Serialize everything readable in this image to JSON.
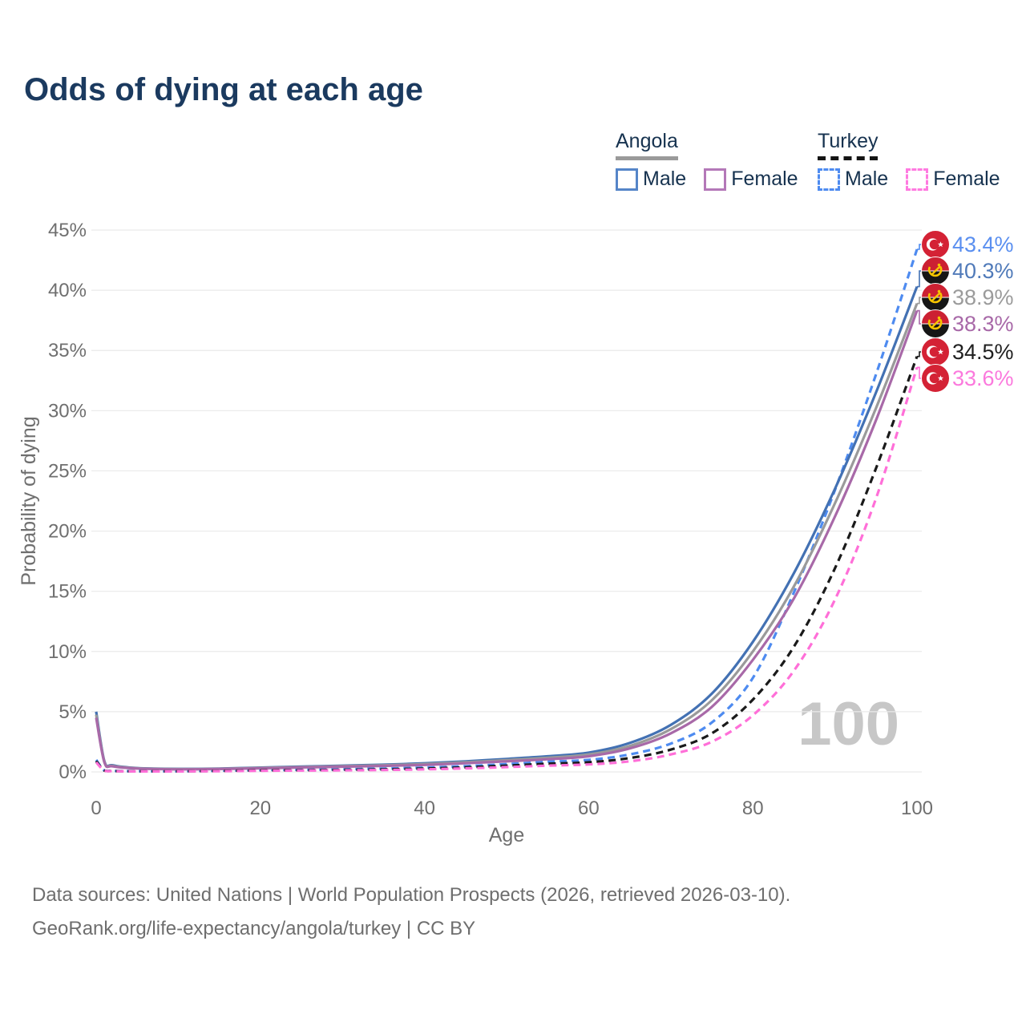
{
  "title": "Odds of dying at each age",
  "legend": {
    "groups": [
      {
        "label": "Angola",
        "underline_style": "solid",
        "underline_color": "#9a9a9a",
        "items": [
          {
            "label": "Male",
            "color": "#4371b3",
            "style": "solid"
          },
          {
            "label": "Female",
            "color": "#a869a8",
            "style": "solid"
          }
        ]
      },
      {
        "label": "Turkey",
        "underline_style": "dashed",
        "underline_color": "#141414",
        "items": [
          {
            "label": "Male",
            "color": "#4e8bf0",
            "style": "dashed"
          },
          {
            "label": "Female",
            "color": "#ff6fd8",
            "style": "dashed"
          }
        ]
      }
    ]
  },
  "watermark": "100",
  "footer": {
    "line1": "Data sources: United Nations | World Population Prospects (2026, retrieved 2026-03-10).",
    "line2": "GeoRank.org/life-expectancy/angola/turkey | CC BY"
  },
  "chart_data": {
    "type": "line",
    "title": "Odds of dying at each age",
    "xlabel": "Age",
    "ylabel": "Probability of dying",
    "xlim": [
      0,
      100
    ],
    "ylim": [
      0,
      45
    ],
    "x_ticks": [
      0,
      20,
      40,
      60,
      80,
      100
    ],
    "y_ticks": [
      0,
      5,
      10,
      15,
      20,
      25,
      30,
      35,
      40,
      45
    ],
    "y_tick_suffix": "%",
    "grid": true,
    "legend_position": "top-right",
    "ages": [
      0,
      1,
      2,
      5,
      10,
      15,
      20,
      25,
      30,
      35,
      40,
      45,
      50,
      55,
      60,
      65,
      70,
      75,
      80,
      85,
      90,
      95,
      100
    ],
    "series": [
      {
        "name": "Turkey Male",
        "country": "Turkey",
        "sex": "Male",
        "color": "#4e8bf0",
        "label_color": "#5a8ff0",
        "dash": true,
        "flag": "turkey-flag",
        "end_label": "43.4%",
        "end_value": 43.4,
        "values": [
          1.0,
          0.12,
          0.08,
          0.06,
          0.06,
          0.1,
          0.15,
          0.18,
          0.22,
          0.28,
          0.36,
          0.48,
          0.65,
          0.85,
          1.0,
          1.45,
          2.35,
          4.1,
          7.8,
          14.9,
          23.4,
          33.0,
          43.4
        ]
      },
      {
        "name": "Angola Male",
        "country": "Angola",
        "sex": "Male",
        "color": "#4371b3",
        "label_color": "#507ab9",
        "dash": false,
        "flag": "angola-flag",
        "end_label": "40.3%",
        "end_value": 40.3,
        "values": [
          5.0,
          0.9,
          0.55,
          0.32,
          0.25,
          0.28,
          0.36,
          0.44,
          0.52,
          0.6,
          0.72,
          0.88,
          1.08,
          1.3,
          1.6,
          2.4,
          3.9,
          6.5,
          10.8,
          16.5,
          23.5,
          31.5,
          40.3
        ]
      },
      {
        "name": "Angola Both sexes",
        "country": "Angola",
        "sex": "Both",
        "color": "#9a9a9a",
        "label_color": "#9b9b9b",
        "dash": false,
        "flag": "angola-flag",
        "end_label": "38.9%",
        "end_value": 38.9,
        "values": [
          4.75,
          0.85,
          0.5,
          0.3,
          0.23,
          0.26,
          0.33,
          0.4,
          0.47,
          0.55,
          0.65,
          0.8,
          0.98,
          1.18,
          1.45,
          2.15,
          3.55,
          5.95,
          10.0,
          15.4,
          22.3,
          30.2,
          38.9
        ]
      },
      {
        "name": "Angola Female",
        "country": "Angola",
        "sex": "Female",
        "color": "#a869a8",
        "label_color": "#a869a8",
        "dash": false,
        "flag": "angola-flag",
        "end_label": "38.3%",
        "end_value": 38.3,
        "values": [
          4.5,
          0.8,
          0.46,
          0.28,
          0.21,
          0.24,
          0.3,
          0.37,
          0.43,
          0.5,
          0.58,
          0.72,
          0.88,
          1.05,
          1.3,
          1.95,
          3.2,
          5.4,
          9.3,
          14.4,
          21.2,
          29.2,
          38.3
        ]
      },
      {
        "name": "Turkey Both sexes",
        "country": "Turkey",
        "sex": "Both",
        "color": "#1a1a1a",
        "label_color": "#1f1f1f",
        "dash": true,
        "flag": "turkey-flag",
        "end_label": "34.5%",
        "end_value": 34.5,
        "values": [
          0.9,
          0.11,
          0.07,
          0.05,
          0.05,
          0.08,
          0.12,
          0.14,
          0.17,
          0.21,
          0.28,
          0.38,
          0.52,
          0.68,
          0.8,
          1.15,
          1.85,
          3.2,
          6.0,
          10.4,
          16.9,
          25.2,
          34.5
        ]
      },
      {
        "name": "Turkey Female",
        "country": "Turkey",
        "sex": "Female",
        "color": "#ff6fd8",
        "label_color": "#fb79dd",
        "dash": true,
        "flag": "turkey-flag",
        "end_label": "33.6%",
        "end_value": 33.6,
        "values": [
          0.8,
          0.1,
          0.06,
          0.04,
          0.04,
          0.06,
          0.09,
          0.11,
          0.13,
          0.16,
          0.21,
          0.29,
          0.4,
          0.52,
          0.62,
          0.88,
          1.45,
          2.5,
          4.7,
          8.4,
          14.3,
          22.7,
          33.6
        ]
      }
    ],
    "flag_colors": {
      "turkey_red": "#d42235",
      "angola_red": "#cc2032",
      "angola_black": "#161616",
      "angola_yellow": "#f6c500",
      "crescent_white": "#ffffff"
    }
  }
}
